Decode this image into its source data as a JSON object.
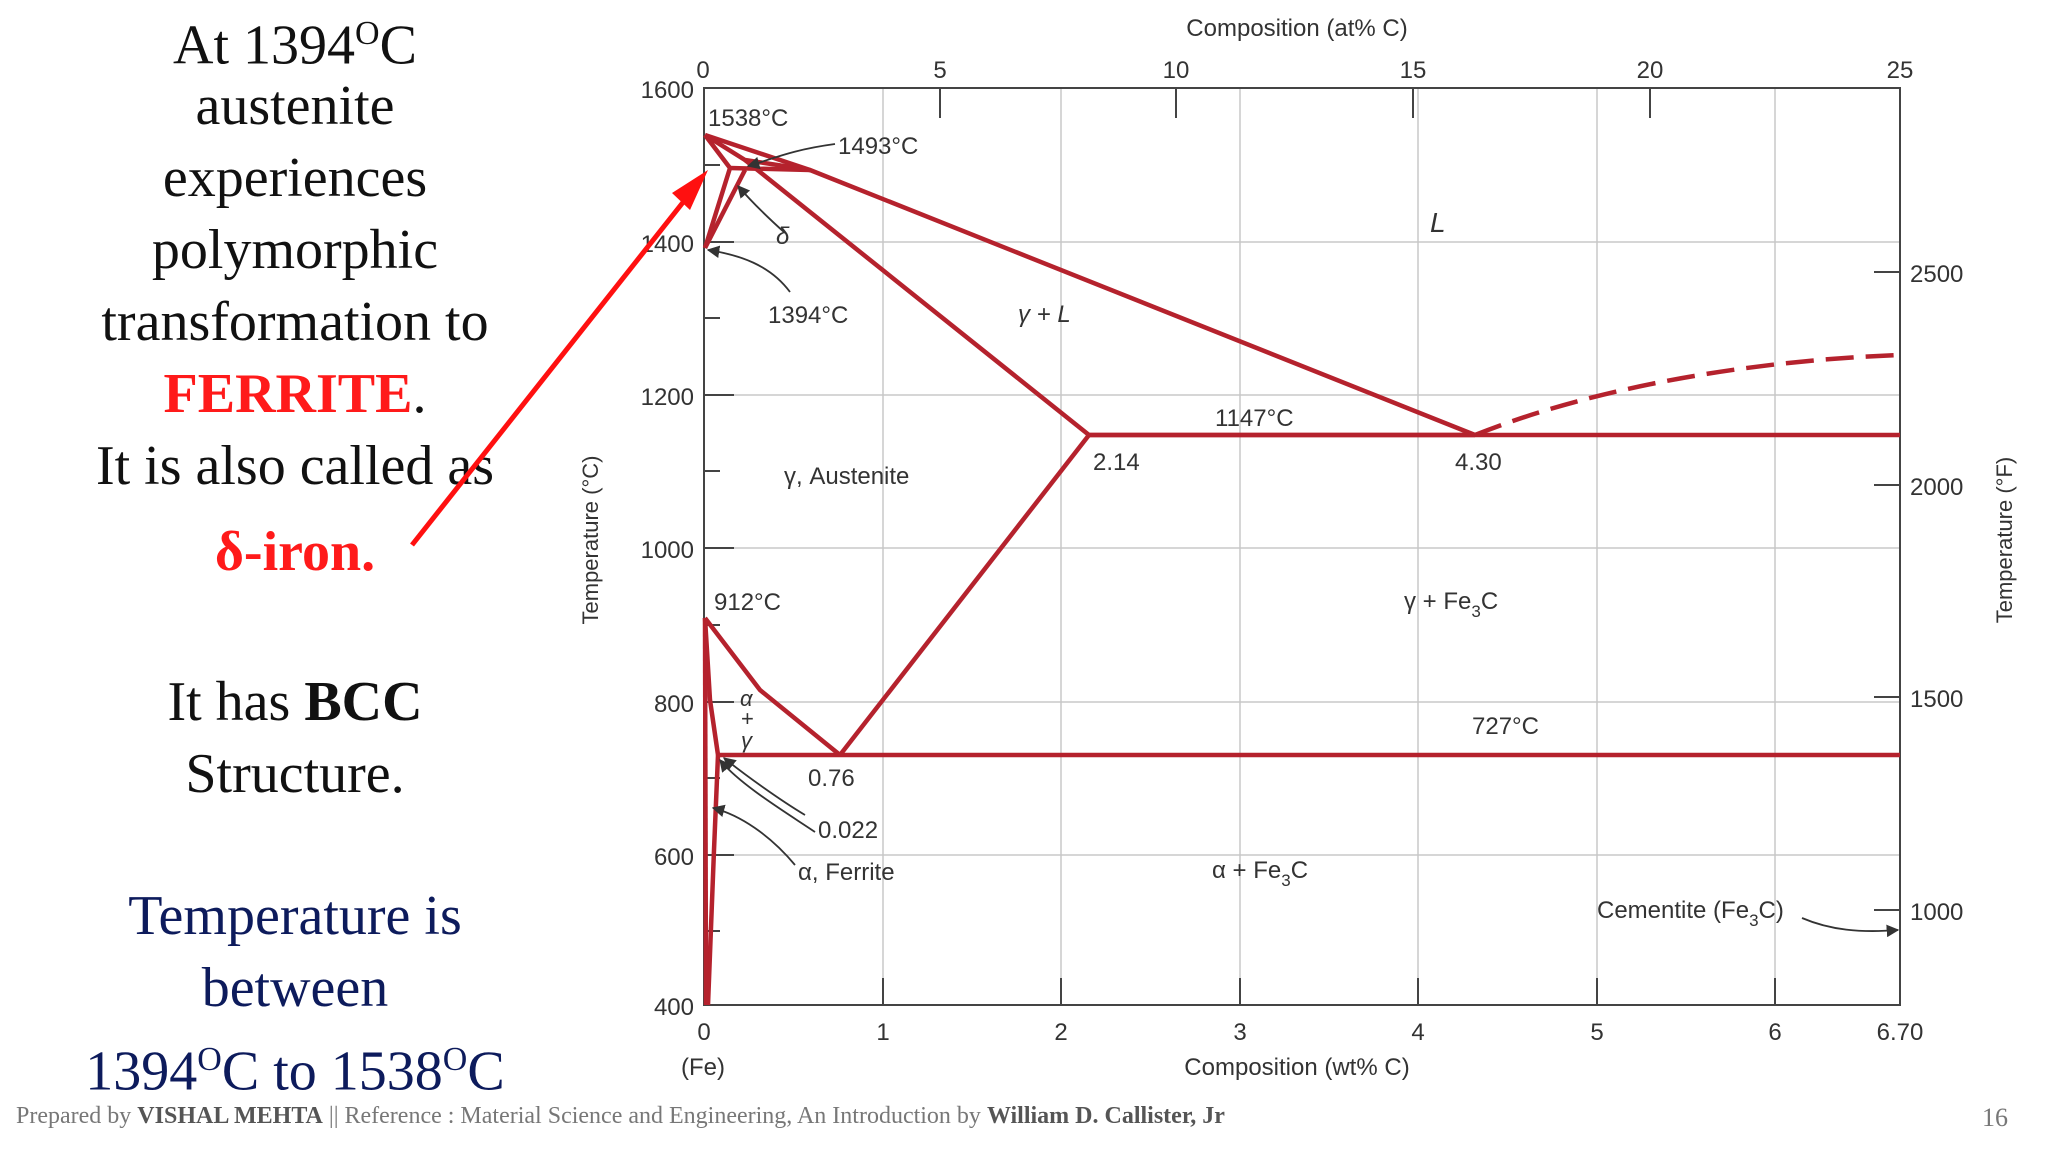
{
  "left_text": {
    "line1": "At 1394",
    "line1_sup": "O",
    "line1_end": "C",
    "line2": "austenite",
    "line3": "experiences",
    "line4": "polymorphic",
    "line5": "transformation to",
    "ferrite": "FERRITE",
    "ferrite_end": ".",
    "line7": "It is also called as",
    "delta_iron": "δ-iron.",
    "line9a": "It has ",
    "line9b": "BCC",
    "line10": "Structure.",
    "temp1": "Temperature is",
    "temp2": "between",
    "temp3a": "1394",
    "temp3_sup1": "O",
    "temp3b": "C to 1538",
    "temp3_sup2": "O",
    "temp3c": "C"
  },
  "diagram": {
    "top_axis_title": "Composition (at% C)",
    "top_ticks": [
      "0",
      "5",
      "10",
      "15",
      "20",
      "25"
    ],
    "left_axis_title": "Temperature (°C)",
    "left_ticks": [
      "1600",
      "1400",
      "1200",
      "1000",
      "800",
      "600",
      "400"
    ],
    "right_axis_title": "Temperature (°F)",
    "right_ticks": [
      "2500",
      "2000",
      "1500",
      "1000"
    ],
    "bottom_axis_title": "Composition (wt% C)",
    "bottom_ticks": [
      "0",
      "1",
      "2",
      "3",
      "4",
      "5",
      "6",
      "6.70"
    ],
    "fe_label": "(Fe)",
    "labels": {
      "t1538": "1538°C",
      "t1493": "1493°C",
      "delta": "δ",
      "t1394": "1394°C",
      "liquid": "L",
      "gamma_l": "γ + L",
      "t1147": "1147°C",
      "c214": "2.14",
      "c430": "4.30",
      "austenite": "γ, Austenite",
      "t912": "912°C",
      "gamma_fe3c_a": "γ + Fe",
      "gamma_fe3c_sub": "3",
      "gamma_fe3c_b": "C",
      "alpha_gamma_1": "α",
      "alpha_gamma_2": "+",
      "alpha_gamma_3": "γ",
      "t727": "727°C",
      "c076": "0.76",
      "c0022": "0.022",
      "ferrite": "α, Ferrite",
      "alpha_fe3c_a": "α + Fe",
      "alpha_fe3c_sub": "3",
      "alpha_fe3c_b": "C",
      "cementite_a": "Cementite (Fe",
      "cementite_sub": "3",
      "cementite_b": "C)"
    },
    "line_color": "#b5222d"
  },
  "footer": {
    "prepared_by": "Prepared by ",
    "author": "VISHAL MEHTA",
    "separator": " || Reference : Material Science and Engineering, An Introduction by ",
    "ref_author": "William D. Callister, Jr",
    "page": "16"
  }
}
